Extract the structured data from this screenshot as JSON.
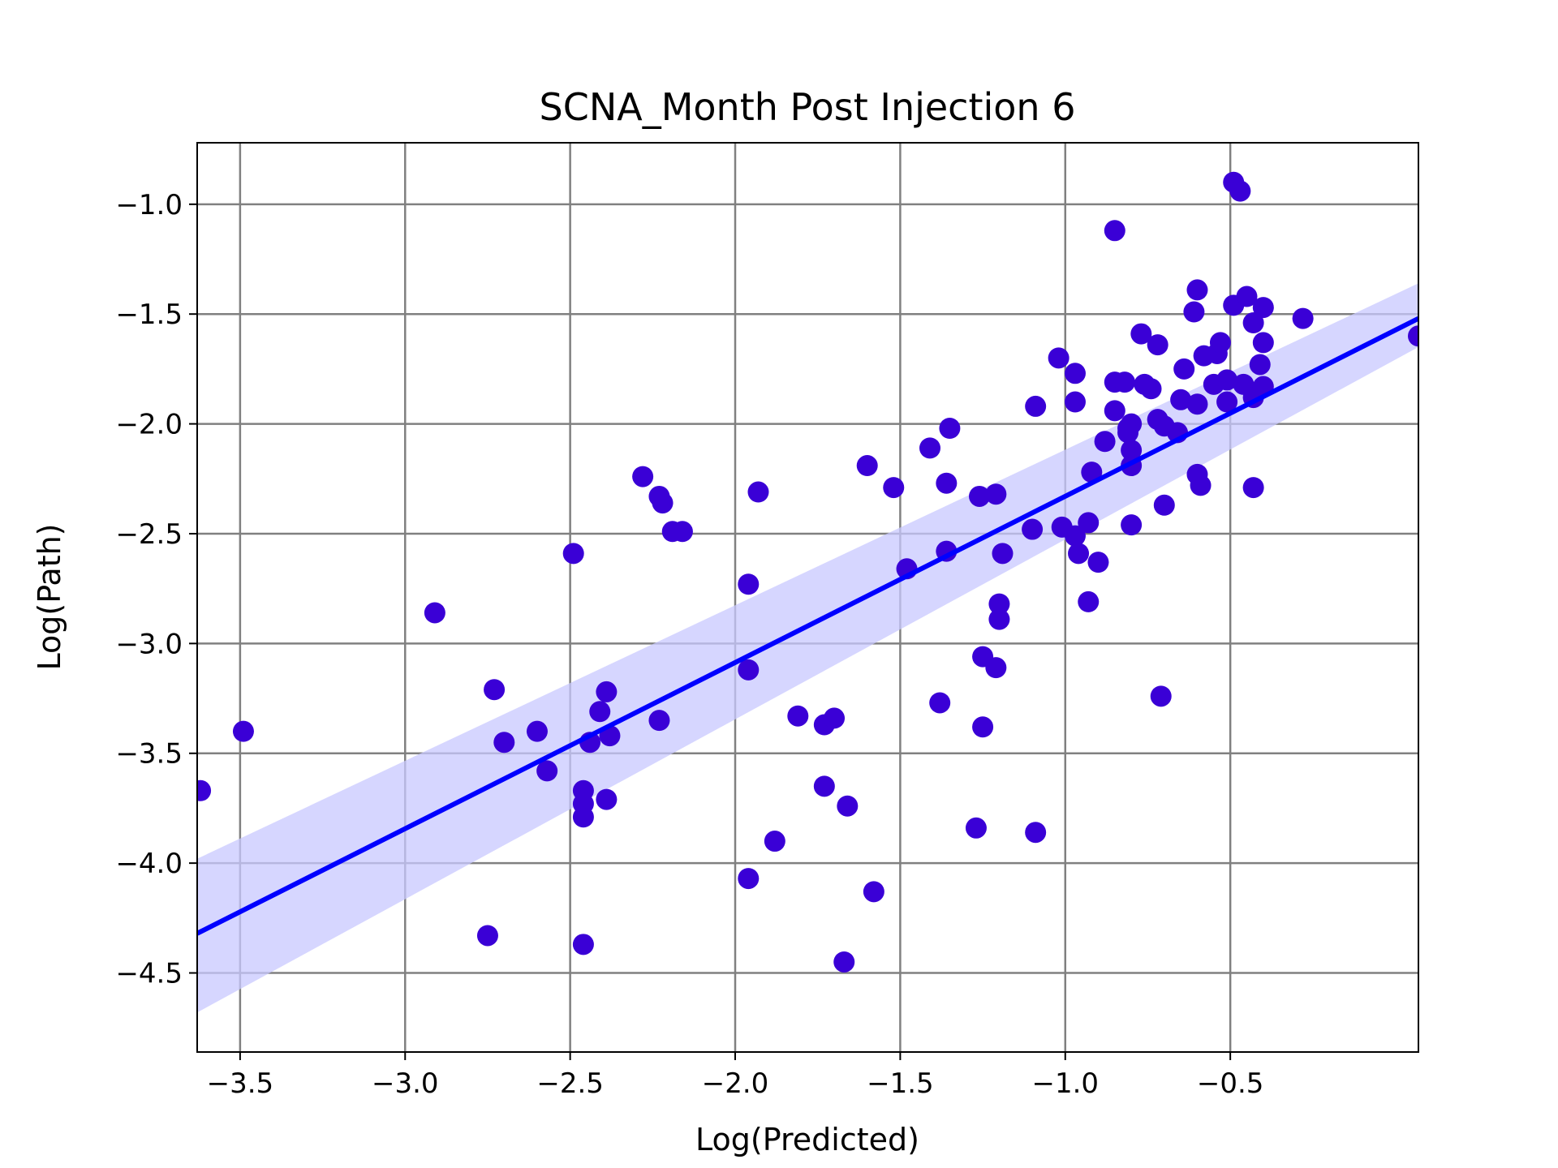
{
  "chart_data": {
    "type": "scatter",
    "title": "SCNA_Month Post Injection 6",
    "xlabel": "Log(Predicted)",
    "ylabel": "Log(Path)",
    "xlim": [
      -3.63,
      0.07
    ],
    "ylim": [
      -4.86,
      -0.72
    ],
    "xticks": [
      -3.5,
      -3.0,
      -2.5,
      -2.0,
      -1.5,
      -1.0,
      -0.5
    ],
    "xtick_labels": [
      "−3.5",
      "−3.0",
      "−2.5",
      "−2.0",
      "−1.5",
      "−1.0",
      "−0.5"
    ],
    "yticks": [
      -1.0,
      -1.5,
      -2.0,
      -2.5,
      -3.0,
      -3.5,
      -4.0,
      -4.5
    ],
    "ytick_labels": [
      "−1.0",
      "−1.5",
      "−2.0",
      "−2.5",
      "−3.0",
      "−3.5",
      "−4.0",
      "−4.5"
    ],
    "grid": true,
    "colors": {
      "points": "#3a00d6",
      "regression_line": "#0000ff",
      "confidence_band": "#c8c8ff",
      "grid": "#808080"
    },
    "regression": {
      "x": [
        -3.63,
        0.07
      ],
      "y": [
        -4.32,
        -1.52
      ],
      "ci_lower": [
        -4.68,
        -1.65
      ],
      "ci_upper": [
        -3.98,
        -1.36
      ]
    },
    "points": [
      [
        -3.62,
        -3.67
      ],
      [
        -3.49,
        -3.4
      ],
      [
        -2.91,
        -2.86
      ],
      [
        -2.75,
        -4.33
      ],
      [
        -2.73,
        -3.21
      ],
      [
        -2.7,
        -3.45
      ],
      [
        -2.6,
        -3.4
      ],
      [
        -2.57,
        -3.58
      ],
      [
        -2.49,
        -2.59
      ],
      [
        -2.46,
        -3.67
      ],
      [
        -2.46,
        -3.73
      ],
      [
        -2.46,
        -3.79
      ],
      [
        -2.46,
        -4.37
      ],
      [
        -2.44,
        -3.45
      ],
      [
        -2.41,
        -3.31
      ],
      [
        -2.39,
        -3.22
      ],
      [
        -2.38,
        -3.42
      ],
      [
        -2.39,
        -3.71
      ],
      [
        -2.28,
        -2.24
      ],
      [
        -2.23,
        -2.33
      ],
      [
        -2.22,
        -2.36
      ],
      [
        -2.19,
        -2.49
      ],
      [
        -2.16,
        -2.49
      ],
      [
        -2.23,
        -3.35
      ],
      [
        -1.96,
        -2.73
      ],
      [
        -1.93,
        -2.31
      ],
      [
        -1.96,
        -3.12
      ],
      [
        -1.96,
        -4.07
      ],
      [
        -1.88,
        -3.9
      ],
      [
        -1.81,
        -3.33
      ],
      [
        -1.73,
        -3.37
      ],
      [
        -1.7,
        -3.34
      ],
      [
        -1.73,
        -3.65
      ],
      [
        -1.66,
        -3.74
      ],
      [
        -1.67,
        -4.45
      ],
      [
        -1.6,
        -2.19
      ],
      [
        -1.58,
        -4.13
      ],
      [
        -1.52,
        -2.29
      ],
      [
        -1.48,
        -2.66
      ],
      [
        -1.41,
        -2.11
      ],
      [
        -1.38,
        -3.27
      ],
      [
        -1.36,
        -2.27
      ],
      [
        -1.35,
        -2.02
      ],
      [
        -1.36,
        -2.58
      ],
      [
        -1.26,
        -2.33
      ],
      [
        -1.21,
        -2.32
      ],
      [
        -1.19,
        -2.59
      ],
      [
        -1.2,
        -2.82
      ],
      [
        -1.2,
        -2.89
      ],
      [
        -1.25,
        -3.06
      ],
      [
        -1.21,
        -3.11
      ],
      [
        -1.25,
        -3.38
      ],
      [
        -1.27,
        -3.84
      ],
      [
        -1.09,
        -3.86
      ],
      [
        -1.09,
        -1.92
      ],
      [
        -1.1,
        -2.48
      ],
      [
        -1.02,
        -1.7
      ],
      [
        -0.97,
        -1.77
      ],
      [
        -0.97,
        -1.9
      ],
      [
        -1.01,
        -2.47
      ],
      [
        -0.97,
        -2.51
      ],
      [
        -0.96,
        -2.59
      ],
      [
        -0.93,
        -2.45
      ],
      [
        -0.92,
        -2.22
      ],
      [
        -0.93,
        -2.81
      ],
      [
        -0.9,
        -2.63
      ],
      [
        -0.88,
        -2.08
      ],
      [
        -0.85,
        -1.12
      ],
      [
        -0.85,
        -1.81
      ],
      [
        -0.82,
        -1.81
      ],
      [
        -0.85,
        -1.94
      ],
      [
        -0.81,
        -2.02
      ],
      [
        -0.8,
        -2.0
      ],
      [
        -0.81,
        -2.04
      ],
      [
        -0.8,
        -2.12
      ],
      [
        -0.8,
        -2.19
      ],
      [
        -0.8,
        -2.46
      ],
      [
        -0.77,
        -1.59
      ],
      [
        -0.76,
        -1.82
      ],
      [
        -0.74,
        -1.84
      ],
      [
        -0.72,
        -1.98
      ],
      [
        -0.72,
        -1.64
      ],
      [
        -0.7,
        -2.01
      ],
      [
        -0.7,
        -2.37
      ],
      [
        -0.71,
        -3.24
      ],
      [
        -0.66,
        -2.04
      ],
      [
        -0.64,
        -1.75
      ],
      [
        -0.65,
        -1.89
      ],
      [
        -0.61,
        -1.49
      ],
      [
        -0.6,
        -1.39
      ],
      [
        -0.6,
        -1.91
      ],
      [
        -0.6,
        -2.23
      ],
      [
        -0.58,
        -1.69
      ],
      [
        -0.59,
        -2.28
      ],
      [
        -0.55,
        -1.82
      ],
      [
        -0.54,
        -1.68
      ],
      [
        -0.53,
        -1.63
      ],
      [
        -0.51,
        -1.8
      ],
      [
        -0.51,
        -1.9
      ],
      [
        -0.49,
        -1.46
      ],
      [
        -0.49,
        -0.9
      ],
      [
        -0.47,
        -0.94
      ],
      [
        -0.46,
        -1.82
      ],
      [
        -0.45,
        -1.42
      ],
      [
        -0.43,
        -1.54
      ],
      [
        -0.43,
        -1.88
      ],
      [
        -0.43,
        -2.29
      ],
      [
        -0.4,
        -1.47
      ],
      [
        -0.4,
        -1.63
      ],
      [
        -0.41,
        -1.73
      ],
      [
        -0.4,
        -1.83
      ],
      [
        -0.28,
        -1.52
      ],
      [
        0.07,
        -1.6
      ]
    ]
  }
}
